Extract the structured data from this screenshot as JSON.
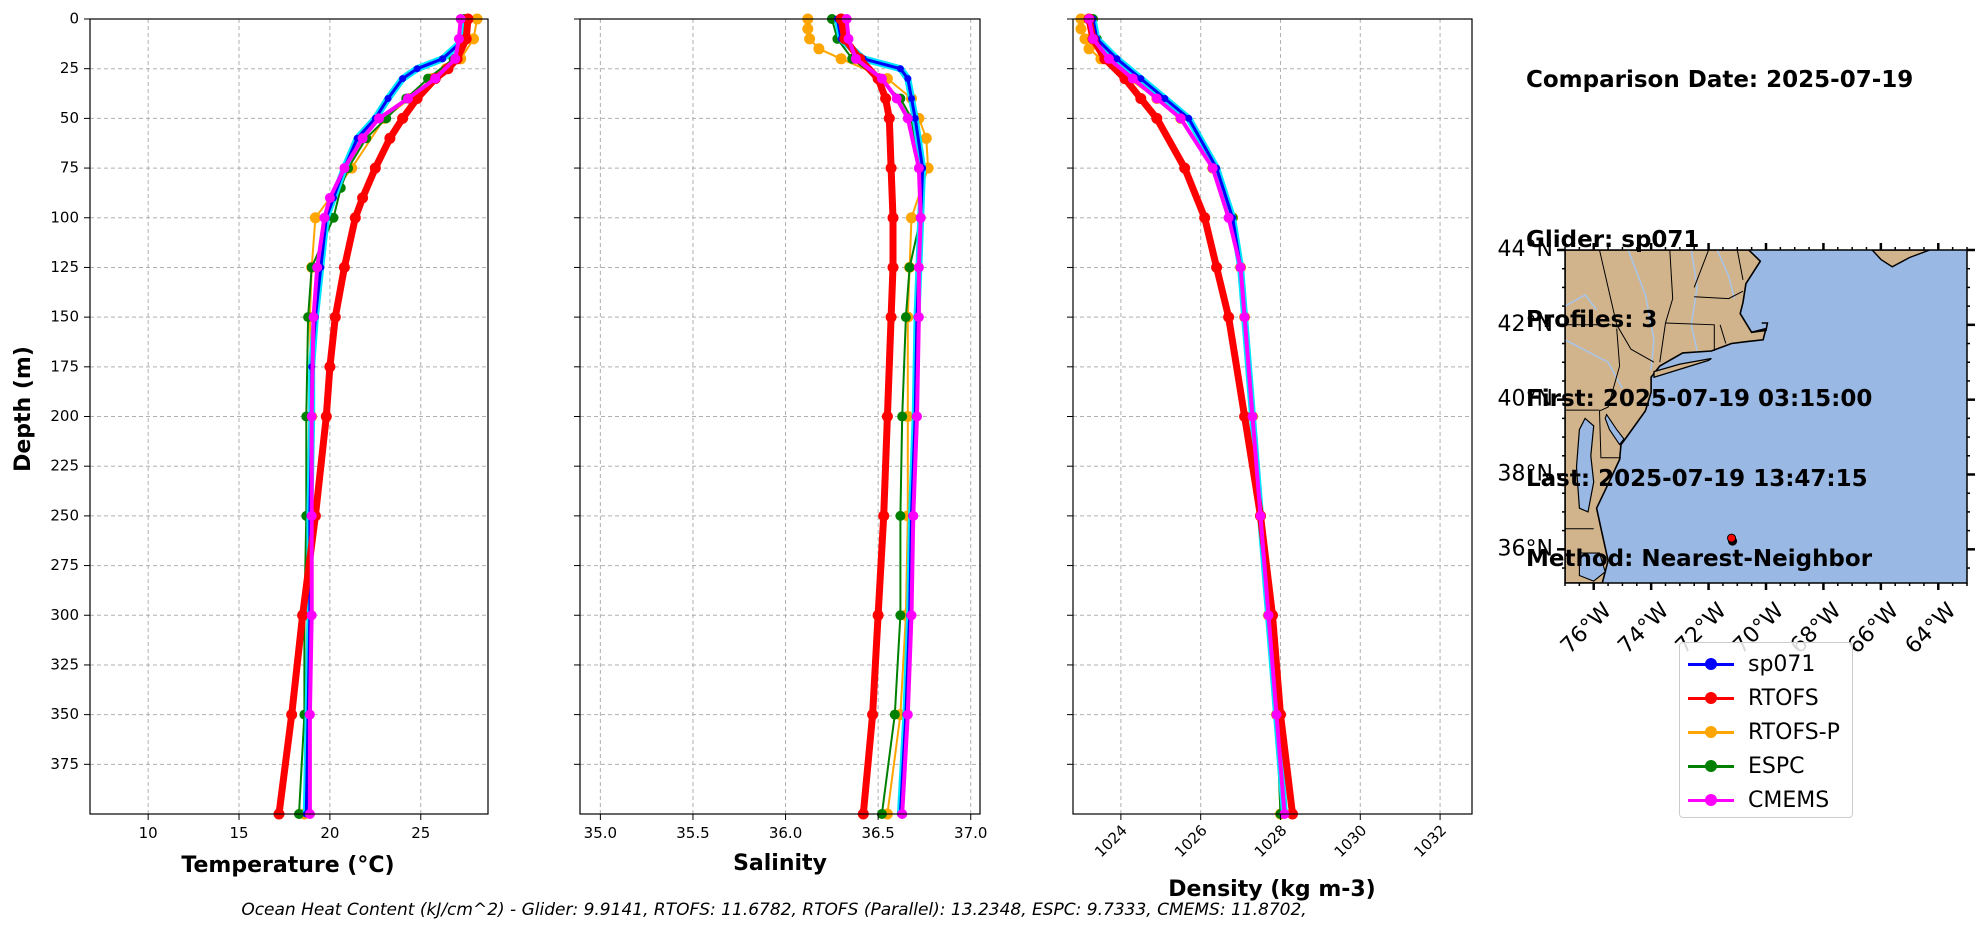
{
  "info": {
    "comparison_date": "Comparison Date: 2025-07-19",
    "glider": "Glider: sp071",
    "profiles": "Profiles: 3",
    "first": "First: 2025-07-19 03:15:00",
    "last": "Last: 2025-07-19 13:47:15",
    "method": "Method: Nearest-Neighbor"
  },
  "footer": "Ocean Heat Content (kJ/cm^2) - Glider: 9.9141,  RTOFS: 11.6782,  RTOFS (Parallel): 13.2348,  ESPC: 9.7333,  CMEMS: 11.8702,",
  "colors": {
    "sp071": "#0000ff",
    "sp071_outline": "#00e5ff",
    "RTOFS": "#ff0000",
    "RTOFS-P": "#ffa500",
    "ESPC": "#008000",
    "CMEMS": "#ff00ff",
    "land": "#d2b48c",
    "ocean": "#99b8e3",
    "rivers": "#a9c4e6",
    "grid": "#b0b0b0"
  },
  "legend": [
    {
      "name": "sp071",
      "color": "#0000ff"
    },
    {
      "name": "RTOFS",
      "color": "#ff0000"
    },
    {
      "name": "RTOFS-P",
      "color": "#ffa500"
    },
    {
      "name": "ESPC",
      "color": "#008000"
    },
    {
      "name": "CMEMS",
      "color": "#ff00ff"
    }
  ],
  "chart_data": [
    {
      "type": "line",
      "xlabel": "Temperature (°C)",
      "ylabel": "Depth (m)",
      "xlim": [
        6.8,
        28.7
      ],
      "ylim": [
        400,
        0
      ],
      "xticks": [
        10,
        15,
        20,
        25
      ],
      "yticks": [
        0,
        25,
        50,
        75,
        100,
        125,
        150,
        175,
        200,
        225,
        250,
        275,
        300,
        325,
        350,
        375
      ],
      "grid": true,
      "series": [
        {
          "name": "sp071",
          "depth": [
            0,
            10,
            20,
            25,
            30,
            40,
            50,
            60,
            75,
            90,
            100,
            125,
            150,
            175,
            200,
            250,
            300,
            350,
            400
          ],
          "values": [
            27.5,
            27.4,
            26.2,
            24.8,
            24.0,
            23.2,
            22.5,
            21.5,
            20.8,
            20.2,
            19.8,
            19.5,
            19.2,
            19.0,
            19.0,
            18.9,
            18.9,
            18.8,
            18.7
          ]
        },
        {
          "name": "RTOFS",
          "depth": [
            0,
            10,
            20,
            25,
            30,
            40,
            50,
            60,
            75,
            90,
            100,
            125,
            150,
            175,
            200,
            250,
            300,
            350,
            400
          ],
          "values": [
            27.6,
            27.5,
            27.0,
            26.5,
            25.8,
            24.8,
            24.0,
            23.3,
            22.5,
            21.8,
            21.4,
            20.8,
            20.3,
            20.0,
            19.8,
            19.2,
            18.5,
            17.9,
            17.2
          ]
        },
        {
          "name": "RTOFS-P",
          "depth": [
            0,
            10,
            20,
            25,
            30,
            40,
            50,
            75,
            100,
            125,
            150,
            200,
            250,
            300,
            350,
            400
          ],
          "values": [
            28.1,
            27.9,
            27.2,
            26.4,
            25.6,
            24.4,
            23.0,
            21.2,
            19.2,
            19.0,
            18.9,
            19.0,
            18.9,
            18.8,
            18.8,
            18.6
          ]
        },
        {
          "name": "ESPC",
          "depth": [
            0,
            10,
            20,
            30,
            40,
            50,
            60,
            75,
            85,
            100,
            125,
            150,
            200,
            250,
            300,
            350,
            400
          ],
          "values": [
            27.4,
            27.3,
            26.8,
            25.4,
            24.2,
            23.1,
            22.0,
            21.0,
            20.6,
            20.2,
            19.0,
            18.8,
            18.7,
            18.7,
            18.6,
            18.6,
            18.3
          ]
        },
        {
          "name": "CMEMS",
          "depth": [
            0,
            10,
            20,
            30,
            40,
            50,
            60,
            75,
            90,
            100,
            125,
            150,
            200,
            250,
            300,
            350,
            400
          ],
          "values": [
            27.2,
            27.1,
            26.9,
            25.8,
            24.3,
            22.7,
            21.8,
            20.8,
            20.0,
            19.7,
            19.3,
            19.1,
            19.0,
            19.0,
            19.0,
            18.9,
            18.9
          ]
        }
      ]
    },
    {
      "type": "line",
      "xlabel": "Salinity",
      "ylim": [
        400,
        0
      ],
      "xlim": [
        34.89,
        37.05
      ],
      "xticks": [
        35.0,
        35.5,
        36.0,
        36.5,
        37.0
      ],
      "xticklabels": [
        "35.0",
        "35.5",
        "36.0",
        "36.5",
        "37.0"
      ],
      "grid": true,
      "series": [
        {
          "name": "sp071",
          "depth": [
            0,
            10,
            20,
            25,
            30,
            40,
            50,
            75,
            100,
            125,
            150,
            200,
            250,
            300,
            350,
            400
          ],
          "values": [
            36.28,
            36.3,
            36.42,
            36.62,
            36.66,
            36.68,
            36.7,
            36.74,
            36.73,
            36.72,
            36.71,
            36.7,
            36.68,
            36.67,
            36.65,
            36.62
          ]
        },
        {
          "name": "RTOFS",
          "depth": [
            0,
            10,
            20,
            30,
            40,
            50,
            75,
            100,
            125,
            150,
            200,
            250,
            300,
            350,
            400
          ],
          "values": [
            36.3,
            36.32,
            36.4,
            36.5,
            36.54,
            36.56,
            36.57,
            36.58,
            36.58,
            36.57,
            36.55,
            36.53,
            36.5,
            36.47,
            36.42
          ]
        },
        {
          "name": "RTOFS-P",
          "depth": [
            0,
            5,
            10,
            15,
            20,
            30,
            40,
            50,
            60,
            75,
            100,
            125,
            150,
            200,
            250,
            300,
            350,
            400
          ],
          "values": [
            36.12,
            36.12,
            36.13,
            36.18,
            36.3,
            36.55,
            36.68,
            36.72,
            36.76,
            36.77,
            36.68,
            36.67,
            36.66,
            36.66,
            36.66,
            36.65,
            36.62,
            36.55
          ]
        },
        {
          "name": "ESPC",
          "depth": [
            0,
            10,
            20,
            30,
            40,
            50,
            75,
            100,
            125,
            150,
            200,
            250,
            300,
            350,
            400
          ],
          "values": [
            36.25,
            36.28,
            36.36,
            36.5,
            36.62,
            36.68,
            36.72,
            36.73,
            36.67,
            36.65,
            36.63,
            36.62,
            36.62,
            36.59,
            36.52
          ]
        },
        {
          "name": "CMEMS",
          "depth": [
            0,
            10,
            20,
            30,
            40,
            50,
            75,
            100,
            125,
            150,
            200,
            250,
            300,
            350,
            400
          ],
          "values": [
            36.33,
            36.34,
            36.38,
            36.52,
            36.6,
            36.66,
            36.72,
            36.73,
            36.72,
            36.72,
            36.71,
            36.69,
            36.68,
            36.66,
            36.63
          ]
        }
      ]
    },
    {
      "type": "line",
      "xlabel": "Density (kg m-3)",
      "ylim": [
        400,
        0
      ],
      "xlim": [
        1022.8,
        1032.8
      ],
      "xticks": [
        1024,
        1026,
        1028,
        1030,
        1032
      ],
      "grid": true,
      "series": [
        {
          "name": "sp071",
          "depth": [
            0,
            10,
            20,
            30,
            40,
            50,
            75,
            100,
            125,
            150,
            200,
            250,
            300,
            350,
            400
          ],
          "values": [
            1023.3,
            1023.4,
            1023.9,
            1024.5,
            1025.1,
            1025.7,
            1026.4,
            1026.8,
            1027.0,
            1027.1,
            1027.3,
            1027.5,
            1027.7,
            1027.9,
            1028.1
          ]
        },
        {
          "name": "RTOFS",
          "depth": [
            0,
            10,
            20,
            30,
            40,
            50,
            75,
            100,
            125,
            150,
            200,
            250,
            300,
            350,
            400
          ],
          "values": [
            1023.2,
            1023.3,
            1023.6,
            1024.1,
            1024.5,
            1024.9,
            1025.6,
            1026.1,
            1026.4,
            1026.7,
            1027.1,
            1027.5,
            1027.8,
            1028.0,
            1028.3
          ]
        },
        {
          "name": "RTOFS-P",
          "depth": [
            0,
            5,
            10,
            15,
            20,
            30,
            40,
            50,
            75,
            100,
            125,
            150,
            200,
            250,
            300,
            350,
            400
          ],
          "values": [
            1023.0,
            1023.0,
            1023.1,
            1023.2,
            1023.5,
            1024.2,
            1024.9,
            1025.5,
            1026.3,
            1026.8,
            1027.0,
            1027.1,
            1027.3,
            1027.5,
            1027.7,
            1027.9,
            1028.0
          ]
        },
        {
          "name": "ESPC",
          "depth": [
            0,
            10,
            20,
            30,
            40,
            50,
            75,
            100,
            125,
            150,
            200,
            250,
            300,
            350,
            400
          ],
          "values": [
            1023.3,
            1023.4,
            1023.8,
            1024.4,
            1025.0,
            1025.5,
            1026.3,
            1026.8,
            1027.0,
            1027.1,
            1027.3,
            1027.5,
            1027.7,
            1027.9,
            1028.0
          ]
        },
        {
          "name": "CMEMS",
          "depth": [
            0,
            10,
            20,
            30,
            40,
            50,
            75,
            100,
            125,
            150,
            200,
            250,
            300,
            350,
            400
          ],
          "values": [
            1023.2,
            1023.3,
            1023.7,
            1024.3,
            1024.9,
            1025.5,
            1026.3,
            1026.7,
            1027.0,
            1027.1,
            1027.3,
            1027.5,
            1027.7,
            1027.9,
            1028.1
          ]
        }
      ]
    }
  ],
  "map": {
    "lon_range": [
      -77.0,
      -63.0
    ],
    "lat_range": [
      35.1,
      44.0
    ],
    "lon_ticks": [
      -76,
      -74,
      -72,
      -70,
      -68,
      -66,
      -64
    ],
    "lon_tick_labels": [
      "76°W",
      "74°W",
      "72°W",
      "70°W",
      "68°W",
      "66°W",
      "64°W"
    ],
    "lat_ticks": [
      36,
      38,
      40,
      42,
      44
    ],
    "lat_tick_labels": [
      "36°N",
      "38°N",
      "40°N",
      "42°N",
      "44°N"
    ],
    "glider_position": {
      "lon": -71.2,
      "lat": 36.3
    }
  }
}
